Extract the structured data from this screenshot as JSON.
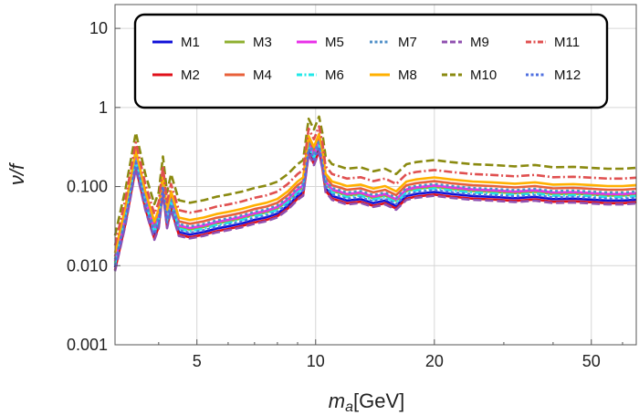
{
  "chart_data": {
    "type": "line",
    "title": "",
    "xlabel": "m_a[GeV]",
    "xlabel_parts": {
      "italic": "m",
      "sub": "a",
      "rest": "[GeV]"
    },
    "ylabel": "ν/f",
    "xscale": "log",
    "yscale": "log",
    "xlim": [
      3.1,
      65
    ],
    "ylim": [
      0.001,
      20
    ],
    "xticks": [
      5,
      10,
      20,
      50
    ],
    "xtick_labels": [
      "5",
      "10",
      "20",
      "50"
    ],
    "yticks": [
      10,
      1,
      0.1,
      0.01,
      0.001
    ],
    "ytick_labels": [
      "10",
      "1",
      "0.100",
      "0.010",
      "0.001"
    ],
    "grid": true,
    "legend_placement": "top",
    "base_curve": {
      "x": [
        3.1,
        3.3,
        3.5,
        3.7,
        3.9,
        4.0,
        4.1,
        4.2,
        4.3,
        4.5,
        4.8,
        5.2,
        5.6,
        6.0,
        6.5,
        7.0,
        7.5,
        8.0,
        8.5,
        9.0,
        9.3,
        9.6,
        9.9,
        10.2,
        10.4,
        10.6,
        10.8,
        11.0,
        11.5,
        12.0,
        13.0,
        14.0,
        15.0,
        16.0,
        17.0,
        18.0,
        20.0,
        22.0,
        25.0,
        28.0,
        32.0,
        36.0,
        40.0,
        45.0,
        50.0,
        55.0,
        60.0,
        65.0
      ],
      "y": [
        0.01,
        0.04,
        0.2,
        0.06,
        0.025,
        0.035,
        0.1,
        0.035,
        0.06,
        0.028,
        0.026,
        0.028,
        0.031,
        0.033,
        0.036,
        0.04,
        0.043,
        0.048,
        0.06,
        0.08,
        0.09,
        0.3,
        0.22,
        0.32,
        0.2,
        0.1,
        0.09,
        0.08,
        0.075,
        0.07,
        0.073,
        0.065,
        0.07,
        0.06,
        0.08,
        0.085,
        0.09,
        0.085,
        0.08,
        0.078,
        0.075,
        0.078,
        0.073,
        0.074,
        0.072,
        0.07,
        0.07,
        0.072
      ]
    },
    "series": [
      {
        "name": "M1",
        "scale": 0.95,
        "color": "#1010d8",
        "dash": "solid"
      },
      {
        "name": "M2",
        "scale": 0.88,
        "color": "#e0101a",
        "dash": "solid"
      },
      {
        "name": "M3",
        "scale": 1.1,
        "color": "#8fb030",
        "dash": "solid"
      },
      {
        "name": "M4",
        "scale": 1.3,
        "color": "#e8603a",
        "dash": "solid"
      },
      {
        "name": "M5",
        "scale": 1.15,
        "color": "#e830e8",
        "dash": "solid"
      },
      {
        "name": "M6",
        "scale": 1.05,
        "color": "#20e8e8",
        "dash": "dashdot"
      },
      {
        "name": "M7",
        "scale": 1.2,
        "color": "#5090c8",
        "dash": "dotted"
      },
      {
        "name": "M8",
        "scale": 1.45,
        "color": "#ffb000",
        "dash": "solid"
      },
      {
        "name": "M9",
        "scale": 0.85,
        "color": "#9050b0",
        "dash": "dashed"
      },
      {
        "name": "M10",
        "scale": 2.4,
        "color": "#8a8a10",
        "dash": "dashed"
      },
      {
        "name": "M11",
        "scale": 1.8,
        "color": "#e05050",
        "dash": "dashdot"
      },
      {
        "name": "M12",
        "scale": 1.0,
        "color": "#5070e0",
        "dash": "dotted"
      }
    ]
  }
}
